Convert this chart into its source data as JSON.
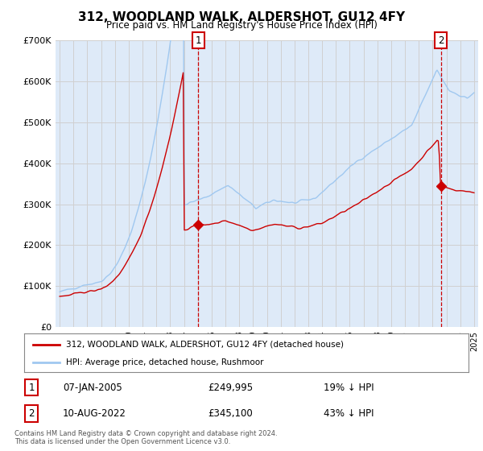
{
  "title": "312, WOODLAND WALK, ALDERSHOT, GU12 4FY",
  "subtitle": "Price paid vs. HM Land Registry's House Price Index (HPI)",
  "footer": "Contains HM Land Registry data © Crown copyright and database right 2024.\nThis data is licensed under the Open Government Licence v3.0.",
  "legend_line1": "312, WOODLAND WALK, ALDERSHOT, GU12 4FY (detached house)",
  "legend_line2": "HPI: Average price, detached house, Rushmoor",
  "sale1_label": "1",
  "sale1_date": "07-JAN-2005",
  "sale1_price": "£249,995",
  "sale1_hpi": "19% ↓ HPI",
  "sale2_label": "2",
  "sale2_date": "10-AUG-2022",
  "sale2_price": "£345,100",
  "sale2_hpi": "43% ↓ HPI",
  "sale1_x": 2005.03,
  "sale1_y": 249995,
  "sale2_x": 2022.6,
  "sale2_y": 345100,
  "hpi_color": "#a0c8f0",
  "sale_color": "#cc0000",
  "vline_color": "#cc0000",
  "ylim": [
    0,
    700000
  ],
  "xlim_start": 1994.7,
  "xlim_end": 2025.3,
  "background_color": "#ffffff",
  "grid_color": "#d0d0d0",
  "plot_bg_color": "#deeaf8"
}
